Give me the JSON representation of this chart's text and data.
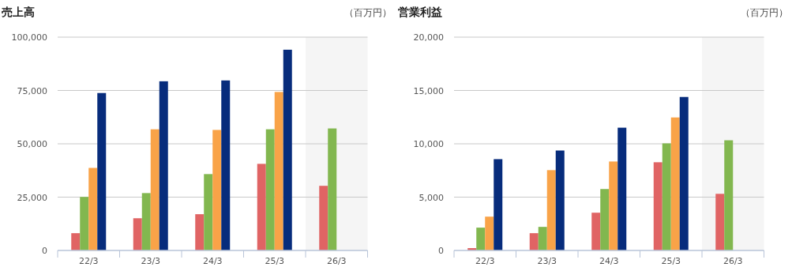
{
  "chart_data": [
    {
      "type": "bar",
      "title": "売上高",
      "annotations": [
        "（百万円）"
      ],
      "categories": [
        "22/3",
        "23/3",
        "24/3",
        "25/3",
        "26/3"
      ],
      "series": [
        {
          "color": "#e06464",
          "values": [
            8100,
            15100,
            17000,
            40600,
            30300
          ]
        },
        {
          "color": "#82b74f",
          "values": [
            25100,
            26900,
            35800,
            56800,
            57200
          ]
        },
        {
          "color": "#f9a348",
          "values": [
            38700,
            56800,
            56500,
            74300,
            null
          ]
        },
        {
          "color": "#072c7c",
          "values": [
            73800,
            79300,
            79700,
            94100,
            null
          ]
        }
      ],
      "ylim": [
        0,
        100000
      ],
      "yticks": [
        0,
        {
          "value": 25000,
          "label": "25,000"
        },
        {
          "value": 50000,
          "label": "50,000"
        },
        {
          "value": 75000,
          "label": "75,000"
        },
        {
          "value": 100000,
          "label": "100,000"
        }
      ],
      "grid": "y",
      "bands": [
        {
          "axis": "x",
          "from": "26/3",
          "to": "26/3",
          "color": "#f5f5f5"
        }
      ]
    },
    {
      "type": "bar",
      "title": "営業利益",
      "annotations": [
        "（百万円）"
      ],
      "categories": [
        "22/3",
        "23/3",
        "24/3",
        "25/3",
        "26/3"
      ],
      "series": [
        {
          "color": "#e06464",
          "values": [
            220,
            1620,
            3540,
            8270,
            5310
          ]
        },
        {
          "color": "#82b74f",
          "values": [
            2140,
            2210,
            5760,
            10040,
            10330
          ]
        },
        {
          "color": "#f9a348",
          "values": [
            3170,
            7530,
            8340,
            12470,
            null
          ]
        },
        {
          "color": "#072c7c",
          "values": [
            8560,
            9370,
            11510,
            14390,
            null
          ]
        }
      ],
      "ylim": [
        0,
        20000
      ],
      "yticks": [
        0,
        {
          "value": 5000,
          "label": "5,000"
        },
        {
          "value": 10000,
          "label": "10,000"
        },
        {
          "value": 15000,
          "label": "15,000"
        },
        {
          "value": 20000,
          "label": "20,000"
        }
      ],
      "grid": "y",
      "bands": [
        {
          "axis": "x",
          "from": "26/3",
          "to": "26/3",
          "color": "#f5f5f5"
        }
      ]
    }
  ]
}
